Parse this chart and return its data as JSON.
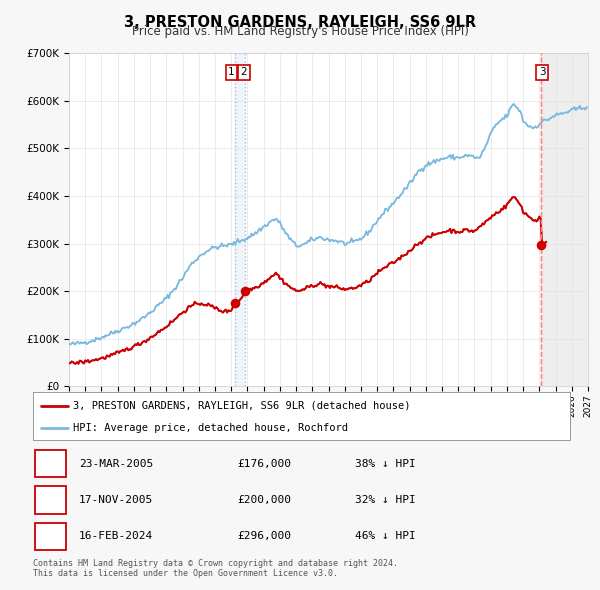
{
  "title": "3, PRESTON GARDENS, RAYLEIGH, SS6 9LR",
  "subtitle": "Price paid vs. HM Land Registry's House Price Index (HPI)",
  "xlim_start": 1995.0,
  "xlim_end": 2027.0,
  "ylim_min": 0,
  "ylim_max": 700000,
  "yticks": [
    0,
    100000,
    200000,
    300000,
    400000,
    500000,
    600000,
    700000
  ],
  "xticks": [
    1995,
    1996,
    1997,
    1998,
    1999,
    2000,
    2001,
    2002,
    2003,
    2004,
    2005,
    2006,
    2007,
    2008,
    2009,
    2010,
    2011,
    2012,
    2013,
    2014,
    2015,
    2016,
    2017,
    2018,
    2019,
    2020,
    2021,
    2022,
    2023,
    2024,
    2025,
    2026,
    2027
  ],
  "hpi_color": "#7ab9e0",
  "price_color": "#cc0000",
  "marker_color": "#cc0000",
  "sale1_date": 2005.22,
  "sale1_price": 176000,
  "sale2_date": 2005.88,
  "sale2_price": 200000,
  "sale3_date": 2024.12,
  "sale3_price": 296000,
  "legend_label1": "3, PRESTON GARDENS, RAYLEIGH, SS6 9LR (detached house)",
  "legend_label2": "HPI: Average price, detached house, Rochford",
  "table_entries": [
    {
      "num": "1",
      "date": "23-MAR-2005",
      "price": "£176,000",
      "hpi": "38% ↓ HPI"
    },
    {
      "num": "2",
      "date": "17-NOV-2005",
      "price": "£200,000",
      "hpi": "32% ↓ HPI"
    },
    {
      "num": "3",
      "date": "16-FEB-2024",
      "price": "£296,000",
      "hpi": "46% ↓ HPI"
    }
  ],
  "footnote1": "Contains HM Land Registry data © Crown copyright and database right 2024.",
  "footnote2": "This data is licensed under the Open Government Licence v3.0.",
  "background_color": "#f7f7f7",
  "plot_bg_color": "#ffffff"
}
